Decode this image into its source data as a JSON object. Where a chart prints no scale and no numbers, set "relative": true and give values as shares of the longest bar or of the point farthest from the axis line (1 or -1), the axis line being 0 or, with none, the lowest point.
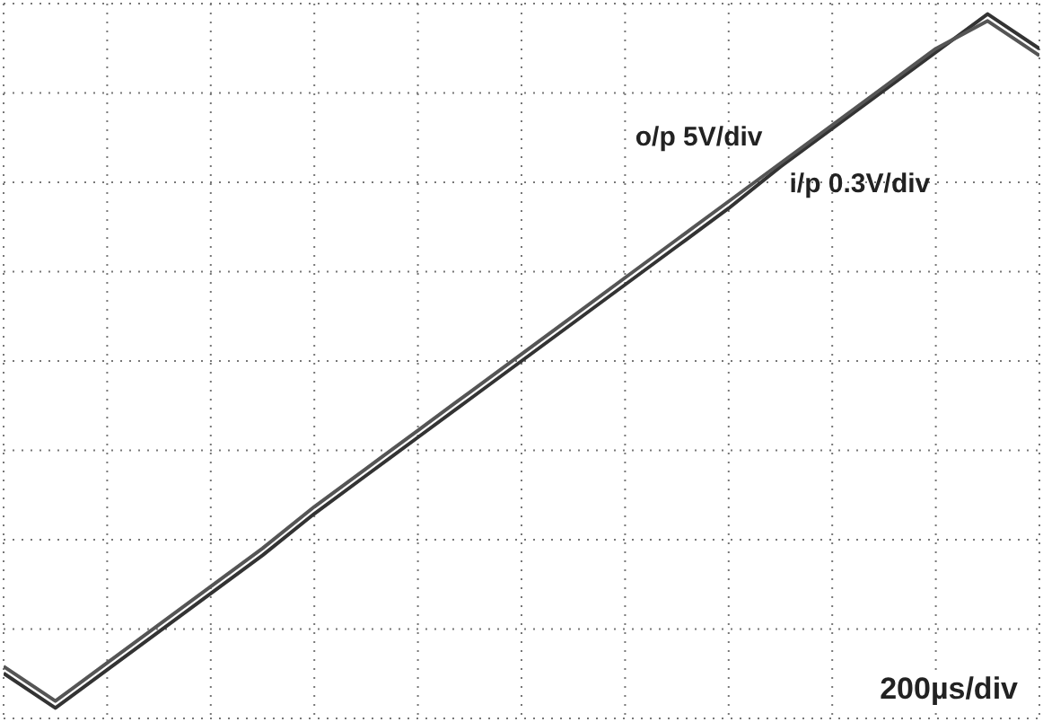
{
  "chart_data": {
    "type": "line",
    "relative": true,
    "grid": true,
    "legend": false,
    "marker": "none",
    "line_style": "solid",
    "categories": [
      null,
      null,
      null,
      null,
      null,
      null,
      null,
      null,
      null,
      null,
      null,
      null,
      null,
      null,
      null,
      null,
      null,
      null,
      null,
      null,
      null
    ],
    "series": [
      {
        "name": "o/p 5V/div",
        "color": "#333333",
        "values": [
          -0.9,
          -1,
          -0.89,
          -0.78,
          -0.67,
          -0.56,
          -0.44,
          -0.33,
          -0.22,
          -0.11,
          0,
          0.11,
          0.22,
          0.33,
          0.44,
          0.56,
          0.67,
          0.78,
          0.89,
          1,
          0.9
        ]
      },
      {
        "name": "i/p 0.3V/div",
        "color": "#555555",
        "values": [
          -0.88,
          -0.98,
          -0.87,
          -0.76,
          -0.65,
          -0.54,
          -0.42,
          -0.31,
          -0.2,
          -0.09,
          0.02,
          0.13,
          0.24,
          0.35,
          0.46,
          0.57,
          0.68,
          0.79,
          0.9,
          0.98,
          0.88
        ]
      }
    ],
    "annotations": [
      "200µs/div"
    ]
  }
}
